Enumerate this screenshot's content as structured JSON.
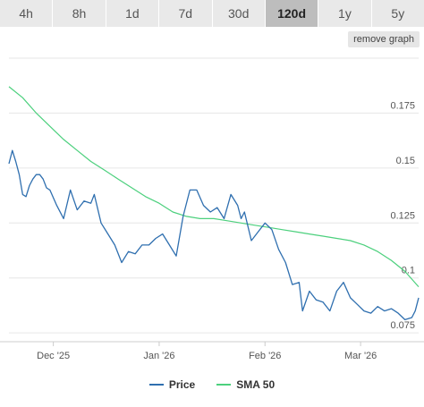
{
  "tabs": [
    {
      "label": "4h",
      "active": false
    },
    {
      "label": "8h",
      "active": false
    },
    {
      "label": "1d",
      "active": false
    },
    {
      "label": "7d",
      "active": false
    },
    {
      "label": "30d",
      "active": false
    },
    {
      "label": "120d",
      "active": true
    },
    {
      "label": "1y",
      "active": false
    },
    {
      "label": "5y",
      "active": false
    }
  ],
  "remove_graph_label": "remove graph",
  "chart_data": {
    "type": "line",
    "x_ticks": [
      "Dec '25",
      "Jan '26",
      "Feb '26",
      "Mar '26"
    ],
    "x_tick_dates": [
      "2025-12-01",
      "2026-01-01",
      "2026-02-01",
      "2026-03-01"
    ],
    "x_range": [
      "2025-11-18",
      "2026-03-18"
    ],
    "y_ticks": [
      0.075,
      0.1,
      0.125,
      0.15,
      0.175
    ],
    "y_tick_labels": [
      "0.075",
      "0.1",
      "0.125",
      "0.15",
      "0.175"
    ],
    "ylim": [
      0.071,
      0.2
    ],
    "grid": true,
    "legend_position": "bottom",
    "series": [
      {
        "name": "Price",
        "color": "#2f6faf",
        "dates": [
          "2025-11-18",
          "2025-11-19",
          "2025-11-20",
          "2025-11-21",
          "2025-11-22",
          "2025-11-23",
          "2025-11-24",
          "2025-11-25",
          "2025-11-26",
          "2025-11-27",
          "2025-11-28",
          "2025-11-29",
          "2025-11-30",
          "2025-12-02",
          "2025-12-04",
          "2025-12-06",
          "2025-12-08",
          "2025-12-10",
          "2025-12-12",
          "2025-12-13",
          "2025-12-15",
          "2025-12-17",
          "2025-12-19",
          "2025-12-21",
          "2025-12-23",
          "2025-12-25",
          "2025-12-27",
          "2025-12-29",
          "2025-12-31",
          "2026-01-02",
          "2026-01-04",
          "2026-01-06",
          "2026-01-08",
          "2026-01-10",
          "2026-01-12",
          "2026-01-14",
          "2026-01-16",
          "2026-01-18",
          "2026-01-20",
          "2026-01-22",
          "2026-01-24",
          "2026-01-25",
          "2026-01-26",
          "2026-01-28",
          "2026-01-30",
          "2026-02-01",
          "2026-02-03",
          "2026-02-05",
          "2026-02-07",
          "2026-02-09",
          "2026-02-11",
          "2026-02-12",
          "2026-02-14",
          "2026-02-16",
          "2026-02-18",
          "2026-02-20",
          "2026-02-22",
          "2026-02-24",
          "2026-02-26",
          "2026-02-28",
          "2026-03-02",
          "2026-03-04",
          "2026-03-06",
          "2026-03-08",
          "2026-03-10",
          "2026-03-12",
          "2026-03-14",
          "2026-03-16",
          "2026-03-17",
          "2026-03-18"
        ],
        "values": [
          0.152,
          0.158,
          0.153,
          0.147,
          0.138,
          0.137,
          0.142,
          0.145,
          0.147,
          0.147,
          0.145,
          0.141,
          0.14,
          0.133,
          0.127,
          0.14,
          0.131,
          0.135,
          0.134,
          0.138,
          0.125,
          0.12,
          0.115,
          0.107,
          0.112,
          0.111,
          0.115,
          0.115,
          0.118,
          0.12,
          0.115,
          0.11,
          0.128,
          0.14,
          0.14,
          0.133,
          0.13,
          0.132,
          0.127,
          0.138,
          0.133,
          0.127,
          0.13,
          0.117,
          0.121,
          0.125,
          0.122,
          0.113,
          0.107,
          0.097,
          0.098,
          0.085,
          0.094,
          0.09,
          0.089,
          0.085,
          0.094,
          0.098,
          0.091,
          0.088,
          0.085,
          0.084,
          0.087,
          0.085,
          0.086,
          0.084,
          0.081,
          0.082,
          0.085,
          0.091
        ]
      },
      {
        "name": "SMA 50",
        "color": "#4cd07d",
        "dates": [
          "2025-11-18",
          "2025-11-22",
          "2025-11-26",
          "2025-11-30",
          "2025-12-04",
          "2025-12-08",
          "2025-12-12",
          "2025-12-16",
          "2025-12-20",
          "2025-12-24",
          "2025-12-28",
          "2026-01-01",
          "2026-01-05",
          "2026-01-09",
          "2026-01-13",
          "2026-01-17",
          "2026-01-21",
          "2026-01-25",
          "2026-01-29",
          "2026-02-02",
          "2026-02-06",
          "2026-02-10",
          "2026-02-14",
          "2026-02-18",
          "2026-02-22",
          "2026-02-26",
          "2026-03-02",
          "2026-03-06",
          "2026-03-10",
          "2026-03-14",
          "2026-03-18"
        ],
        "values": [
          0.187,
          0.182,
          0.175,
          0.169,
          0.163,
          0.158,
          0.153,
          0.149,
          0.145,
          0.141,
          0.137,
          0.134,
          0.13,
          0.128,
          0.127,
          0.127,
          0.126,
          0.125,
          0.124,
          0.123,
          0.122,
          0.121,
          0.12,
          0.119,
          0.118,
          0.117,
          0.115,
          0.112,
          0.108,
          0.103,
          0.096
        ]
      }
    ]
  }
}
